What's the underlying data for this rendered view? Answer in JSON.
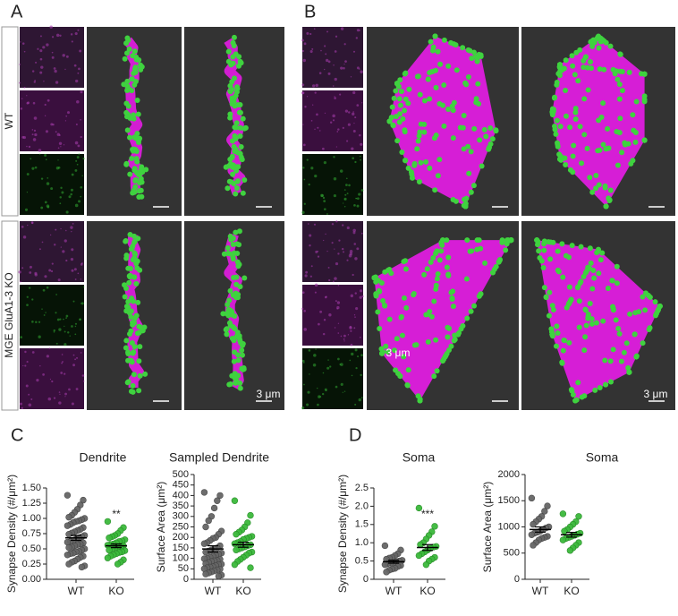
{
  "panel_labels": [
    "A",
    "B",
    "C",
    "D"
  ],
  "row_labels": [
    "WT",
    "MGE GluA1-3 KO"
  ],
  "scale_bar": "3 μm",
  "chart_data": [
    {
      "type": "dot",
      "title": "Dendrite",
      "y_label": "Synapse Density (#/μm²)",
      "categories": [
        "WT",
        "KO"
      ],
      "colors": [
        "#666666",
        "#3cb93c"
      ],
      "values": [
        [
          1.38,
          1.3,
          1.22,
          1.15,
          1.1,
          1.05,
          1.02,
          1.0,
          0.98,
          0.96,
          0.95,
          0.93,
          0.9,
          0.88,
          0.85,
          0.82,
          0.8,
          0.78,
          0.76,
          0.74,
          0.72,
          0.7,
          0.68,
          0.66,
          0.64,
          0.62,
          0.61,
          0.6,
          0.58,
          0.57,
          0.55,
          0.53,
          0.52,
          0.5,
          0.48,
          0.46,
          0.45,
          0.43,
          0.42,
          0.4,
          0.38,
          0.36,
          0.33,
          0.3,
          0.28,
          0.25,
          0.22,
          0.2
        ],
        [
          0.95,
          0.85,
          0.8,
          0.75,
          0.72,
          0.7,
          0.68,
          0.65,
          0.63,
          0.62,
          0.6,
          0.58,
          0.57,
          0.56,
          0.55,
          0.54,
          0.53,
          0.52,
          0.5,
          0.48,
          0.47,
          0.45,
          0.44,
          0.42,
          0.4,
          0.38,
          0.35,
          0.32,
          0.28,
          0.25
        ]
      ],
      "means": [
        0.68,
        0.55
      ],
      "sems": [
        0.04,
        0.03
      ],
      "annotation": "**",
      "ylim": [
        0,
        1.5
      ],
      "yticks": [
        {
          "value": 0,
          "label": "0.00"
        },
        0.25,
        {
          "value": 0.5,
          "label": "0.50"
        },
        0.75,
        {
          "value": 1,
          "label": "1.00"
        },
        1.25,
        {
          "value": 1.5,
          "label": "1.50"
        }
      ]
    },
    {
      "type": "dot",
      "title": "Sampled Dendrite",
      "y_label": "Surface Area (μm²)",
      "categories": [
        "WT",
        "KO"
      ],
      "colors": [
        "#666666",
        "#3cb93c"
      ],
      "values": [
        [
          415,
          400,
          375,
          340,
          300,
          280,
          250,
          230,
          215,
          200,
          195,
          185,
          175,
          170,
          160,
          150,
          145,
          140,
          135,
          130,
          125,
          120,
          115,
          110,
          105,
          100,
          98,
          95,
          90,
          88,
          85,
          80,
          75,
          72,
          70,
          65,
          60,
          58,
          55,
          50,
          48,
          45,
          40,
          35,
          30,
          25,
          20,
          15
        ],
        [
          375,
          305,
          270,
          250,
          235,
          225,
          215,
          205,
          200,
          195,
          190,
          180,
          175,
          170,
          165,
          160,
          155,
          150,
          145,
          140,
          130,
          125,
          115,
          105,
          95,
          85,
          70,
          55
        ]
      ],
      "means": [
        145,
        165
      ],
      "sems": [
        15,
        12
      ],
      "ylim": [
        0,
        500
      ],
      "yticks": [
        0,
        50,
        100,
        150,
        200,
        250,
        300,
        350,
        400,
        450,
        500
      ]
    },
    {
      "type": "dot",
      "title": "Soma",
      "y_label": "Synapse Density (#/μm²)",
      "categories": [
        "WT",
        "KO"
      ],
      "colors": [
        "#666666",
        "#3cb93c"
      ],
      "values": [
        [
          0.92,
          0.8,
          0.7,
          0.65,
          0.6,
          0.58,
          0.55,
          0.52,
          0.5,
          0.48,
          0.46,
          0.45,
          0.43,
          0.4,
          0.38,
          0.35,
          0.3,
          0.28,
          0.25,
          0.2
        ],
        [
          1.95,
          1.45,
          1.3,
          1.2,
          1.1,
          1.0,
          0.95,
          0.9,
          0.88,
          0.85,
          0.8,
          0.75,
          0.7,
          0.65,
          0.6,
          0.55,
          0.5,
          0.4
        ]
      ],
      "means": [
        0.48,
        0.87
      ],
      "sems": [
        0.04,
        0.08
      ],
      "annotation": "***",
      "ylim": [
        0,
        2.5
      ],
      "yticks": [
        0,
        0.5,
        {
          "value": 1,
          "label": "1.0"
        },
        1.5,
        {
          "value": 2,
          "label": "2.0"
        },
        2.5
      ]
    },
    {
      "type": "dot",
      "title": "Soma",
      "y_label": "Surface Area (μm²)",
      "categories": [
        "WT",
        "KO"
      ],
      "colors": [
        "#666666",
        "#3cb93c"
      ],
      "values": [
        [
          1550,
          1400,
          1300,
          1200,
          1150,
          1100,
          1050,
          1000,
          980,
          950,
          920,
          900,
          880,
          850,
          820,
          800,
          780,
          750,
          700,
          650
        ],
        [
          1250,
          1200,
          1100,
          1050,
          1000,
          950,
          920,
          880,
          860,
          840,
          820,
          800,
          780,
          750,
          700,
          650,
          600,
          550
        ]
      ],
      "means": [
        950,
        850
      ],
      "sems": [
        50,
        45
      ],
      "ylim": [
        0,
        2000
      ],
      "yticks": [
        0,
        500,
        1000,
        1500,
        2000
      ]
    }
  ]
}
